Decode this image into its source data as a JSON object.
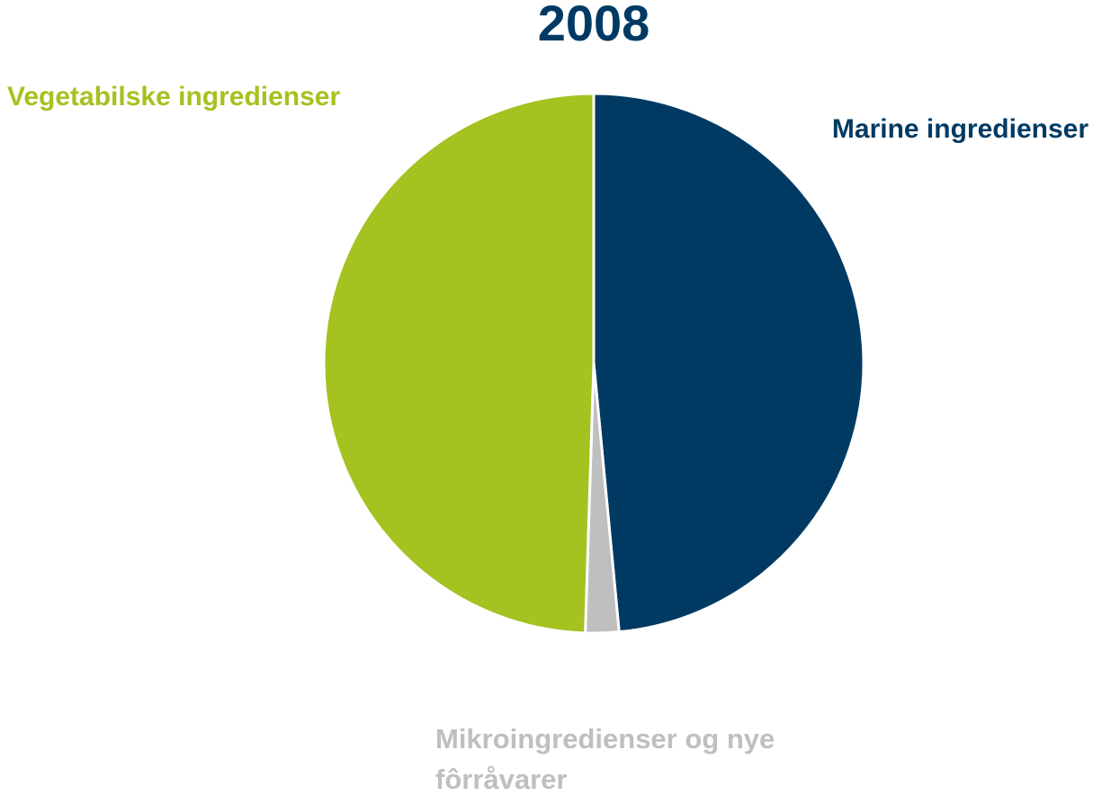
{
  "chart_data": {
    "type": "pie",
    "title": "2008",
    "categories": [
      "Marine ingredienser",
      "Mikroingredienser og nye fôrråvarer",
      "Vegetabilske ingredienser"
    ],
    "values": [
      48.5,
      2,
      49.5
    ],
    "colors": [
      "#003a63",
      "#bfbfbf",
      "#a4c220"
    ],
    "title_color": "#003a63"
  }
}
